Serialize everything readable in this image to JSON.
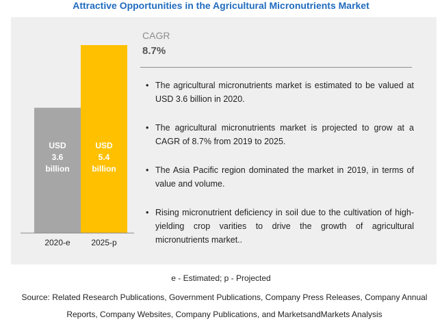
{
  "title": "Attractive Opportunities in the Agricultural Micronutrients Market",
  "cagr": {
    "label": "CAGR",
    "value": "8.7%"
  },
  "bullets": [
    "The agricultural micronutrients market is estimated to be valued at USD 3.6 billion in 2020.",
    "The agricultural micronutrients market is projected to grow at a CAGR of 8.7% from 2019 to 2025.",
    "The Asia Pacific region dominated the market in 2019, in terms of value and volume.",
    "Rising micronutrient deficiency in soil due to the cultivation of high-yielding crop varities to drive the growth of agricultural micronutrients market.."
  ],
  "note": "e - Estimated;  p - Projected",
  "source": "Source: Related Research Publications, Government Publications, Company Press Releases, Company Annual Reports, Company Websites, Company Publications, and MarketsandMarkets Analysis",
  "chart_data": {
    "type": "bar",
    "categories": [
      "2020-e",
      "2025-p"
    ],
    "values": [
      3.6,
      5.4
    ],
    "data_labels": [
      [
        "USD",
        "3.6",
        "billion"
      ],
      [
        "USD",
        "5.4",
        "billion"
      ]
    ],
    "colors": [
      "#a6a6a6",
      "#ffc000"
    ],
    "ylim": [
      0,
      5.4
    ],
    "grid": false
  }
}
